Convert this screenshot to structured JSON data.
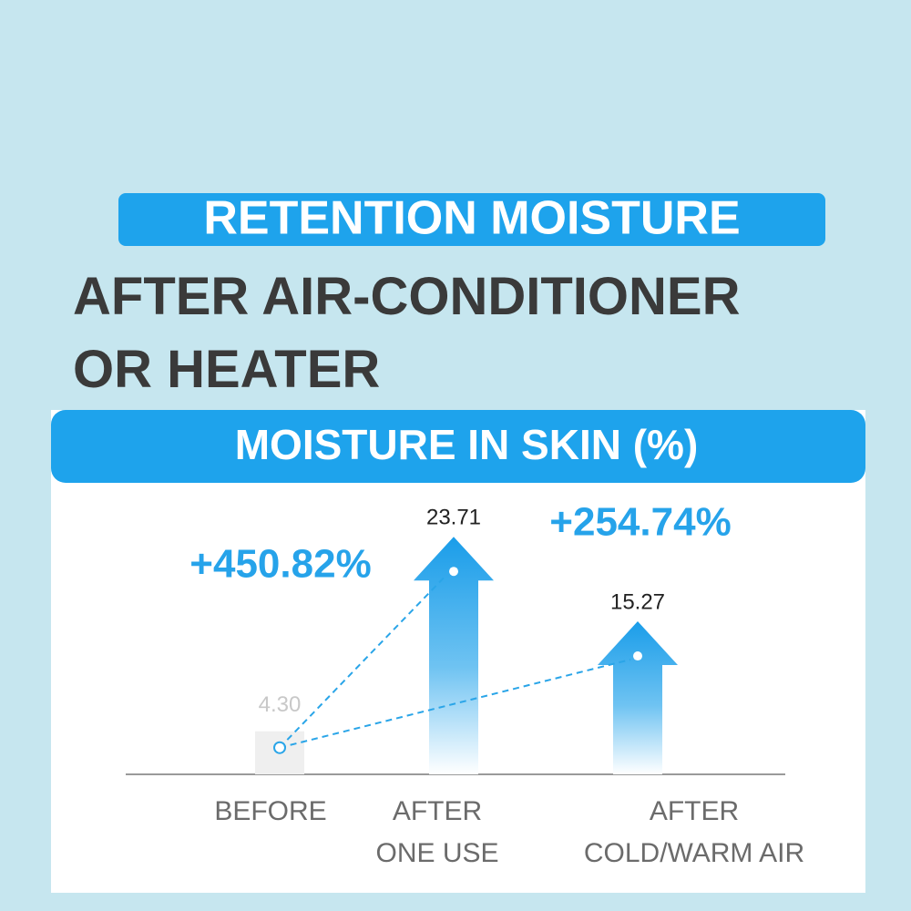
{
  "headline": {
    "highlight": "RETENTION MOISTURE",
    "lines": [
      "AFTER AIR-CONDITIONER",
      "OR HEATER"
    ]
  },
  "chart_data": {
    "type": "bar",
    "title": "MOISTURE IN SKIN (%)",
    "categories": [
      "BEFORE",
      "AFTER ONE USE",
      "AFTER COLD/WARM AIR"
    ],
    "values": [
      4.3,
      23.71,
      15.27
    ],
    "value_labels": [
      "4.30",
      "23.71",
      "15.27"
    ],
    "colors": [
      "#efefef",
      "#1a9de9",
      "#1a9de9"
    ],
    "annotations": [
      "+450.82%",
      "+254.74%"
    ]
  }
}
